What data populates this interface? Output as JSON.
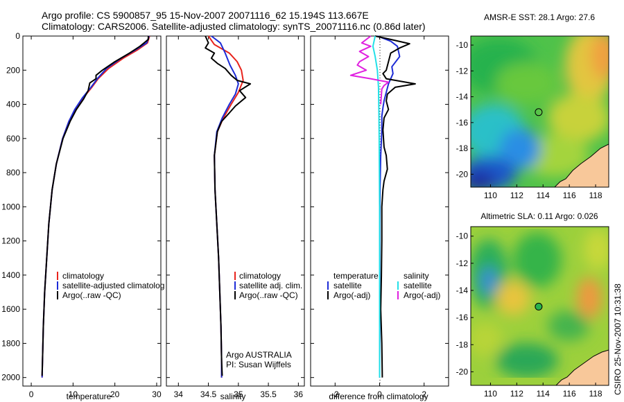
{
  "titles": {
    "line1": "Argo profile: CS 5900857_95 15-Nov-2007 20071116_62 15.194S 113.667E",
    "line2": "Climatology: CARS2006. Satellite-adjusted climatology: synTS_20071116.nc (0.86d later)"
  },
  "colors": {
    "climatology": "#e8231c",
    "satellite": "#1c2bd6",
    "argo": "#000000",
    "sal_sat": "#22e0e8",
    "sal_argo": "#e020e0"
  },
  "chart_data": [
    {
      "type": "line",
      "id": "temperature",
      "xlabel": "temperature",
      "xlim": [
        -2,
        31
      ],
      "ylim": [
        0,
        2050
      ],
      "yreversed": true,
      "xticks": [
        "0",
        "10",
        "20",
        "30"
      ],
      "yticks": [
        "0",
        "200",
        "400",
        "600",
        "800",
        "1000",
        "1200",
        "1400",
        "1600",
        "1800",
        "2000"
      ],
      "legend": [
        "climatology",
        "satellite-adjusted climatolog",
        "Argo(..raw -QC)"
      ],
      "series": [
        {
          "name": "climatology",
          "color": "#e8231c",
          "points": [
            [
              28.3,
              0
            ],
            [
              27.8,
              40
            ],
            [
              25.5,
              80
            ],
            [
              22,
              130
            ],
            [
              18.5,
              190
            ],
            [
              16,
              250
            ],
            [
              14.5,
              300
            ],
            [
              12.5,
              360
            ],
            [
              10.5,
              430
            ],
            [
              9,
              500
            ],
            [
              7.5,
              600
            ],
            [
              6,
              750
            ],
            [
              5,
              900
            ],
            [
              4.2,
              1100
            ],
            [
              3.7,
              1300
            ],
            [
              3.2,
              1500
            ],
            [
              2.9,
              1700
            ],
            [
              2.7,
              1900
            ],
            [
              2.6,
              2000
            ]
          ]
        },
        {
          "name": "satellite",
          "color": "#1c2bd6",
          "points": [
            [
              28.2,
              0
            ],
            [
              27.6,
              40
            ],
            [
              25,
              80
            ],
            [
              21.5,
              130
            ],
            [
              18,
              190
            ],
            [
              15.8,
              250
            ],
            [
              14.3,
              300
            ],
            [
              12.3,
              360
            ],
            [
              10.4,
              430
            ],
            [
              9,
              500
            ],
            [
              7.5,
              600
            ],
            [
              6,
              750
            ],
            [
              5,
              900
            ],
            [
              4.2,
              1100
            ],
            [
              3.7,
              1300
            ],
            [
              3.2,
              1500
            ],
            [
              2.9,
              1700
            ],
            [
              2.7,
              1900
            ],
            [
              2.6,
              2000
            ]
          ]
        },
        {
          "name": "argo",
          "color": "#000000",
          "points": [
            [
              28,
              0
            ],
            [
              28,
              20
            ],
            [
              26,
              60
            ],
            [
              23.5,
              100
            ],
            [
              20,
              150
            ],
            [
              17,
              200
            ],
            [
              15.5,
              230
            ],
            [
              15.5,
              250
            ],
            [
              14,
              275
            ],
            [
              13.6,
              320
            ],
            [
              12.5,
              370
            ],
            [
              10.8,
              430
            ],
            [
              9.3,
              500
            ],
            [
              7.6,
              600
            ],
            [
              6,
              750
            ],
            [
              5,
              900
            ],
            [
              4.2,
              1100
            ],
            [
              3.7,
              1300
            ],
            [
              3.2,
              1500
            ],
            [
              2.9,
              1700
            ],
            [
              2.7,
              1900
            ],
            [
              2.6,
              1990
            ]
          ]
        }
      ]
    },
    {
      "type": "line",
      "id": "salinity",
      "xlabel": "salinity",
      "xlim": [
        33.8,
        36.1
      ],
      "ylim": [
        0,
        2050
      ],
      "yreversed": true,
      "xticks": [
        "34",
        "34.5",
        "35",
        "35.5",
        "36"
      ],
      "legend": [
        "climatology",
        "satellite adj. clim.",
        "Argo(..raw -QC)"
      ],
      "annotation": [
        "Argo AUSTRALIA",
        "PI: Susan Wijffels"
      ],
      "series": [
        {
          "name": "climatology",
          "color": "#e8231c",
          "points": [
            [
              34.5,
              0
            ],
            [
              34.6,
              50
            ],
            [
              34.85,
              100
            ],
            [
              34.98,
              150
            ],
            [
              35.05,
              200
            ],
            [
              35.08,
              260
            ],
            [
              35,
              330
            ],
            [
              34.88,
              400
            ],
            [
              34.75,
              480
            ],
            [
              34.65,
              560
            ],
            [
              34.6,
              700
            ],
            [
              34.61,
              900
            ],
            [
              34.64,
              1100
            ],
            [
              34.67,
              1300
            ],
            [
              34.69,
              1500
            ],
            [
              34.71,
              1700
            ],
            [
              34.72,
              1900
            ],
            [
              34.72,
              2000
            ]
          ]
        },
        {
          "name": "satellite",
          "color": "#1c2bd6",
          "points": [
            [
              34.55,
              0
            ],
            [
              34.7,
              40
            ],
            [
              34.78,
              100
            ],
            [
              34.86,
              170
            ],
            [
              34.95,
              230
            ],
            [
              35,
              280
            ],
            [
              34.95,
              340
            ],
            [
              34.85,
              400
            ],
            [
              34.73,
              480
            ],
            [
              34.64,
              560
            ],
            [
              34.6,
              700
            ],
            [
              34.61,
              900
            ],
            [
              34.64,
              1100
            ],
            [
              34.67,
              1300
            ],
            [
              34.69,
              1500
            ],
            [
              34.71,
              1700
            ],
            [
              34.72,
              1900
            ],
            [
              34.72,
              2000
            ]
          ]
        },
        {
          "name": "argo",
          "color": "#000000",
          "points": [
            [
              34.45,
              0
            ],
            [
              34.5,
              40
            ],
            [
              34.45,
              70
            ],
            [
              34.6,
              100
            ],
            [
              34.55,
              130
            ],
            [
              34.65,
              160
            ],
            [
              34.78,
              190
            ],
            [
              34.88,
              230
            ],
            [
              34.98,
              260
            ],
            [
              35.2,
              280
            ],
            [
              35.02,
              320
            ],
            [
              35.12,
              360
            ],
            [
              34.95,
              410
            ],
            [
              34.85,
              450
            ],
            [
              34.72,
              500
            ],
            [
              34.65,
              560
            ],
            [
              34.6,
              700
            ],
            [
              34.61,
              900
            ],
            [
              34.64,
              1100
            ],
            [
              34.67,
              1300
            ],
            [
              34.69,
              1500
            ],
            [
              34.71,
              1700
            ],
            [
              34.72,
              1900
            ],
            [
              34.73,
              1990
            ]
          ]
        }
      ]
    },
    {
      "type": "line",
      "id": "difference",
      "xlabel": "difference from climatology",
      "xlim": [
        -3.1,
        3.1
      ],
      "ylim": [
        0,
        2050
      ],
      "yreversed": true,
      "xticks": [
        "-2",
        "0",
        "2"
      ],
      "legend_headers": [
        "temperature",
        "salinity"
      ],
      "legend": [
        "satellite",
        "Argo(-adj)",
        "satellite",
        "Argo(-adj)"
      ],
      "series": [
        {
          "name": "temperature satellite",
          "color": "#1c2bd6",
          "points": [
            [
              -0.1,
              0
            ],
            [
              0.5,
              30
            ],
            [
              0.8,
              60
            ],
            [
              0.9,
              120
            ],
            [
              0.55,
              180
            ],
            [
              0.6,
              220
            ],
            [
              0.4,
              280
            ],
            [
              0.3,
              330
            ],
            [
              0.2,
              380
            ],
            [
              0.15,
              420
            ],
            [
              0.1,
              470
            ],
            [
              0.1,
              550
            ],
            [
              0.05,
              700
            ],
            [
              0.02,
              900
            ],
            [
              0.01,
              1100
            ],
            [
              0.01,
              1400
            ],
            [
              0.01,
              1700
            ],
            [
              0.0,
              2000
            ]
          ]
        },
        {
          "name": "temperature argo",
          "color": "#000000",
          "points": [
            [
              -0.2,
              0
            ],
            [
              0.5,
              20
            ],
            [
              1.35,
              45
            ],
            [
              0.9,
              70
            ],
            [
              0.5,
              100
            ],
            [
              0.4,
              150
            ],
            [
              0.3,
              200
            ],
            [
              0.15,
              220
            ],
            [
              0.3,
              250
            ],
            [
              1.6,
              280
            ],
            [
              0.7,
              300
            ],
            [
              0.35,
              340
            ],
            [
              0.3,
              380
            ],
            [
              0.4,
              430
            ],
            [
              0.2,
              480
            ],
            [
              0.15,
              550
            ],
            [
              0.2,
              650
            ],
            [
              0.3,
              700
            ],
            [
              0.35,
              780
            ],
            [
              0.2,
              850
            ],
            [
              0.15,
              900
            ],
            [
              0.1,
              1000
            ],
            [
              0.1,
              1200
            ],
            [
              0.08,
              1400
            ],
            [
              0.05,
              1600
            ],
            [
              0.1,
              1800
            ],
            [
              0.12,
              2000
            ]
          ]
        },
        {
          "name": "salinity satellite",
          "color": "#22e0e8",
          "points": [
            [
              -0.2,
              0
            ],
            [
              -0.3,
              60
            ],
            [
              -0.2,
              120
            ],
            [
              -0.1,
              200
            ],
            [
              -0.05,
              300
            ],
            [
              -0.03,
              450
            ],
            [
              -0.02,
              600
            ],
            [
              -0.01,
              800
            ],
            [
              0.0,
              1000
            ],
            [
              0.0,
              1500
            ],
            [
              0.0,
              2000
            ]
          ]
        },
        {
          "name": "salinity argo",
          "color": "#e020e0",
          "points": [
            [
              -0.4,
              0
            ],
            [
              -0.8,
              40
            ],
            [
              -0.4,
              60
            ],
            [
              -0.9,
              90
            ],
            [
              -0.5,
              120
            ],
            [
              -0.9,
              150
            ],
            [
              -1.0,
              170
            ],
            [
              -0.6,
              200
            ],
            [
              -1.3,
              230
            ],
            [
              -0.4,
              250
            ],
            [
              0.4,
              270
            ],
            [
              0.2,
              290
            ],
            [
              0.1,
              310
            ],
            [
              0.05,
              400
            ]
          ]
        }
      ]
    },
    {
      "type": "heatmap",
      "id": "sst-map",
      "title": "AMSR-E SST: 28.1  Argo: 27.6",
      "xlim": [
        108.5,
        119
      ],
      "ylim": [
        -21,
        -9.3
      ],
      "xticks": [
        "110",
        "112",
        "114",
        "116",
        "118"
      ],
      "yticks": [
        "-10",
        "-12",
        "-14",
        "-16",
        "-18",
        "-20"
      ],
      "marker": [
        113.667,
        -15.194
      ]
    },
    {
      "type": "heatmap",
      "id": "sla-map",
      "title": "Altimetric SLA: 0.11  Argo: 0.026",
      "xlim": [
        108.5,
        119
      ],
      "ylim": [
        -21,
        -9.3
      ],
      "xticks": [
        "110",
        "112",
        "114",
        "116",
        "118"
      ],
      "yticks": [
        "-10",
        "-12",
        "-14",
        "-16",
        "-18",
        "-20"
      ],
      "marker": [
        113.667,
        -15.194
      ]
    }
  ],
  "footer": {
    "credit": "CSIRO 25-Nov-2007 10:31:38"
  }
}
